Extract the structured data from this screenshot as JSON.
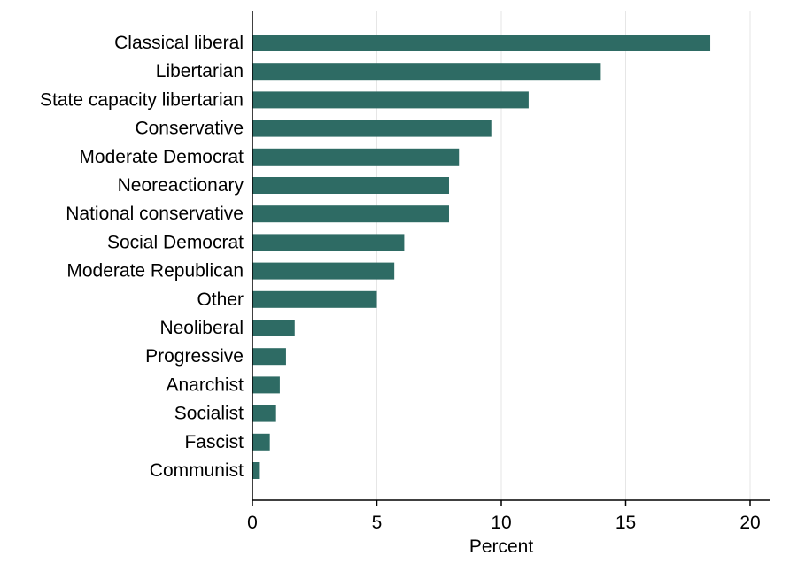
{
  "chart_data": {
    "type": "bar",
    "orientation": "horizontal",
    "categories": [
      "Classical liberal",
      "Libertarian",
      "State capacity libertarian",
      "Conservative",
      "Moderate Democrat",
      "Neoreactionary",
      "National conservative",
      "Social Democrat",
      "Moderate Republican",
      "Other",
      "Neoliberal",
      "Progressive",
      "Anarchist",
      "Socialist",
      "Fascist",
      "Communist"
    ],
    "values": [
      18.4,
      14.0,
      11.1,
      9.6,
      8.3,
      7.9,
      7.9,
      6.1,
      5.7,
      5.0,
      1.7,
      1.35,
      1.1,
      0.95,
      0.7,
      0.3
    ],
    "xlabel": "Percent",
    "xlim": [
      0,
      20
    ],
    "xticks": [
      0,
      5,
      10,
      15,
      20
    ],
    "xtick_labels": [
      "0",
      "5",
      "10",
      "15",
      "20"
    ],
    "grid": "vertical",
    "legend": "none",
    "colors": {
      "bar": "#2e6b64",
      "grid": "#e6e6e6",
      "axis": "#000000"
    }
  }
}
